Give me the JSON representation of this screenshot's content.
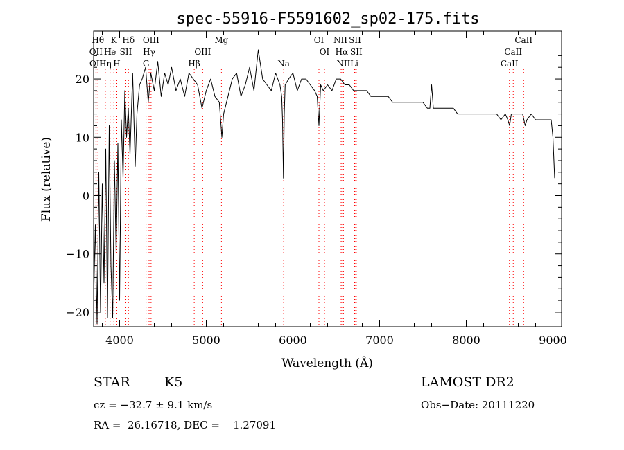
{
  "chart_data": {
    "type": "line",
    "title": "spec-55916-F5591602_sp02-175.fits",
    "xlabel": "Wavelength (Å)",
    "ylabel": "Flux (relative)",
    "xlim": [
      3700,
      9100
    ],
    "ylim": [
      -22.5,
      28.2
    ],
    "x_ticks": [
      4000,
      5000,
      6000,
      7000,
      8000,
      9000
    ],
    "y_ticks": [
      -20,
      -10,
      0,
      10,
      20
    ],
    "grid": false,
    "line_color": "#000000",
    "marker_color": "#ff0000",
    "series": [
      {
        "x": [
          3700,
          3720,
          3740,
          3760,
          3780,
          3800,
          3820,
          3840,
          3860,
          3880,
          3900,
          3920,
          3940,
          3960,
          3980,
          4000,
          4020,
          4040,
          4060,
          4080,
          4100,
          4120,
          4150,
          4180,
          4200,
          4230,
          4260,
          4300,
          4330,
          4360,
          4400,
          4440,
          4480,
          4520,
          4560,
          4600,
          4650,
          4700,
          4750,
          4800,
          4850,
          4900,
          4950,
          5000,
          5050,
          5100,
          5150,
          5170,
          5180,
          5200,
          5250,
          5300,
          5350,
          5400,
          5450,
          5500,
          5550,
          5600,
          5650,
          5700,
          5750,
          5800,
          5850,
          5870,
          5880,
          5890,
          5900,
          5910,
          5950,
          6000,
          6050,
          6100,
          6150,
          6200,
          6250,
          6280,
          6300,
          6320,
          6350,
          6400,
          6450,
          6500,
          6550,
          6600,
          6650,
          6700,
          6750,
          6800,
          6850,
          6900,
          6950,
          7000,
          7050,
          7100,
          7150,
          7200,
          7250,
          7300,
          7350,
          7400,
          7450,
          7500,
          7550,
          7580,
          7600,
          7620,
          7650,
          7700,
          7750,
          7800,
          7850,
          7900,
          7950,
          8000,
          8050,
          8100,
          8150,
          8200,
          8250,
          8300,
          8350,
          8400,
          8450,
          8480,
          8500,
          8520,
          8550,
          8600,
          8650,
          8680,
          8700,
          8750,
          8800,
          8850,
          8900,
          8950,
          8980,
          9000,
          9020
        ],
        "y": [
          -18,
          -5,
          -22,
          4,
          -20,
          2,
          -15,
          8,
          -21,
          12,
          -12,
          -21,
          6,
          -10,
          9,
          -18,
          13,
          3,
          18,
          10,
          15,
          7,
          21,
          5,
          14,
          19,
          20,
          22,
          16,
          21,
          18,
          23,
          17,
          21,
          19,
          22,
          18,
          20,
          17,
          21,
          20,
          19,
          15,
          18,
          20,
          17,
          16,
          12,
          10,
          14,
          17,
          20,
          21,
          17,
          19,
          22,
          18,
          25,
          20,
          19,
          18,
          21,
          19,
          17,
          13,
          3,
          14,
          19,
          20,
          21,
          18,
          20,
          20,
          19,
          18,
          17,
          12,
          19,
          18,
          19,
          18,
          20,
          20,
          19,
          19,
          18,
          18,
          18,
          18,
          17,
          17,
          17,
          17,
          17,
          16,
          16,
          16,
          16,
          16,
          16,
          16,
          16,
          15,
          15,
          19,
          15,
          15,
          15,
          15,
          15,
          15,
          14,
          14,
          14,
          14,
          14,
          14,
          14,
          14,
          14,
          14,
          13,
          14,
          13,
          12,
          14,
          14,
          14,
          14,
          12,
          13,
          14,
          13,
          13,
          13,
          13,
          13,
          10,
          3
        ]
      }
    ],
    "lines": [
      {
        "label": "Hθ",
        "x": 3750,
        "row": 1
      },
      {
        "label": "K",
        "x": 3934,
        "row": 1
      },
      {
        "label": "Hδ",
        "x": 4102,
        "row": 1
      },
      {
        "label": "OIII",
        "x": 4363,
        "row": 1
      },
      {
        "label": "Mg",
        "x": 5175,
        "row": 1
      },
      {
        "label": "OI",
        "x": 6300,
        "row": 1
      },
      {
        "label": "NII",
        "x": 6548,
        "row": 1
      },
      {
        "label": "SII",
        "x": 6716,
        "row": 1
      },
      {
        "label": "CaII",
        "x": 8662,
        "row": 1
      },
      {
        "label": "OII",
        "x": 3727,
        "row": 2
      },
      {
        "label": "He",
        "x": 3889,
        "row": 2
      },
      {
        "label": "I",
        "x": 3889,
        "row": 2
      },
      {
        "label": "SII",
        "x": 4072,
        "row": 2
      },
      {
        "label": "Hγ",
        "x": 4340,
        "row": 2
      },
      {
        "label": "OIII",
        "x": 4959,
        "row": 2
      },
      {
        "label": "OI",
        "x": 6364,
        "row": 2
      },
      {
        "label": "Hα",
        "x": 6563,
        "row": 2
      },
      {
        "label": "SII",
        "x": 6731,
        "row": 2
      },
      {
        "label": "CaII",
        "x": 8542,
        "row": 2
      },
      {
        "label": "OII",
        "x": 3729,
        "row": 3
      },
      {
        "label": "Hη",
        "x": 3835,
        "row": 3
      },
      {
        "label": "H",
        "x": 3968,
        "row": 3
      },
      {
        "label": "G",
        "x": 4305,
        "row": 3
      },
      {
        "label": "Hβ",
        "x": 4861,
        "row": 3
      },
      {
        "label": "Na",
        "x": 5893,
        "row": 3
      },
      {
        "label": "NII",
        "x": 6583,
        "row": 3
      },
      {
        "label": "Li",
        "x": 6708,
        "row": 3
      },
      {
        "label": "CaII",
        "x": 8498,
        "row": 3
      }
    ]
  },
  "info": {
    "type_label": "STAR",
    "subclass": "K5",
    "survey": "LAMOST DR2",
    "cz_line": "cz = −32.7 ± 9.1 km/s",
    "obs_date": "Obs−Date: 20111220",
    "coords_line": "RA =  26.16718, DEC =    1.27091"
  }
}
